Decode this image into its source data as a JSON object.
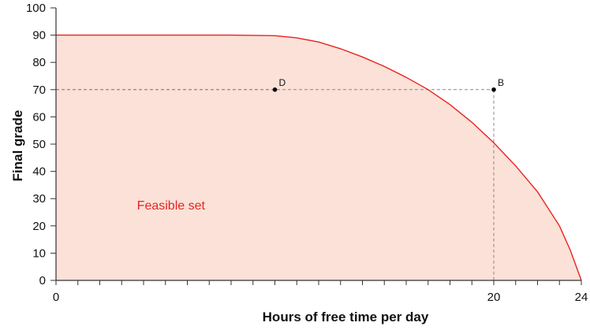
{
  "chart_data": {
    "type": "area",
    "xlabel": "Hours of free time per day",
    "ylabel": "Final grade",
    "xlim": [
      0,
      24
    ],
    "ylim": [
      0,
      100
    ],
    "x_tick_labels": [
      "0",
      "20",
      "24"
    ],
    "x_tick_label_values": [
      0,
      20,
      24
    ],
    "x_minor_ticks": [
      0,
      1,
      2,
      3,
      4,
      5,
      6,
      7,
      8,
      9,
      10,
      11,
      12,
      13,
      14,
      15,
      16,
      17,
      18,
      19,
      20,
      21,
      22,
      23,
      24
    ],
    "y_ticks": [
      0,
      10,
      20,
      30,
      40,
      50,
      60,
      70,
      80,
      90,
      100
    ],
    "grid": false,
    "frontier": {
      "x": [
        0,
        4,
        8,
        10,
        11,
        12,
        13,
        14,
        15,
        16,
        17,
        18,
        19,
        20,
        21,
        22,
        23,
        23.5,
        24
      ],
      "y": [
        90,
        90,
        90,
        89.8,
        89,
        87.5,
        85,
        82,
        78.5,
        74.5,
        70,
        64.5,
        58,
        50.5,
        42,
        32.5,
        20,
        11,
        0
      ]
    },
    "points": [
      {
        "label": "D",
        "x": 10,
        "y": 70
      },
      {
        "label": "B",
        "x": 20,
        "y": 70
      }
    ],
    "annotations": [
      {
        "text": "Feasible set",
        "x": 3.7,
        "y": 26
      }
    ],
    "colors": {
      "frontier": "#e8231f",
      "fill": "#fbe1d8",
      "annotation": "#e8231f",
      "guide": "#888888",
      "axis": "#333333"
    }
  }
}
